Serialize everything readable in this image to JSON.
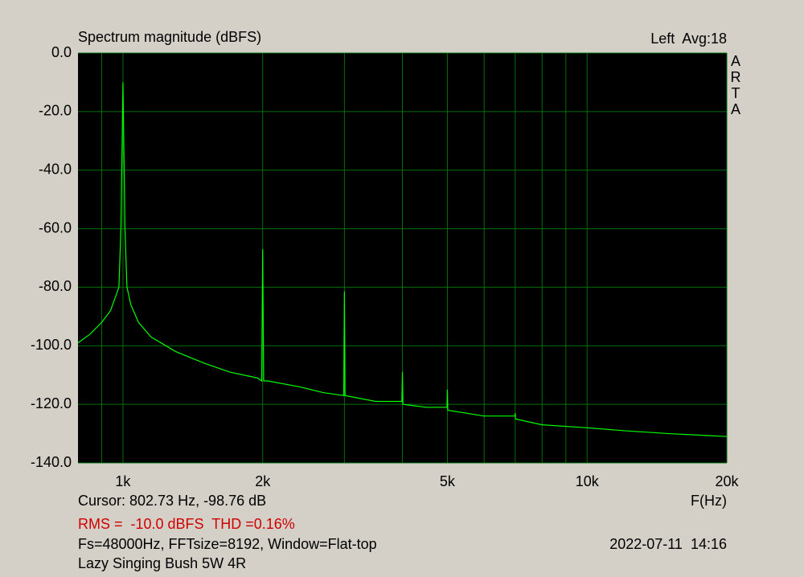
{
  "chart_data": {
    "type": "line",
    "title": "Spectrum magnitude (dBFS)",
    "channel_info": "Left  Avg:18",
    "brand": "ARTA",
    "x_label": "F(Hz)",
    "cursor": "Cursor: 802.73 Hz, -98.76 dB",
    "measurement": "RMS =  -10.0 dBFS  THD =0.16%",
    "settings": "Fs=48000Hz, FFTsize=8192, Window=Flat-top",
    "timestamp": "2022-07-11  14:16",
    "device": "Lazy Singing Bush 5W 4R",
    "x_log": true,
    "grid": true,
    "xlim": [
      800,
      20000
    ],
    "ylim": [
      -140,
      0
    ],
    "xticks": [
      {
        "value": 1000,
        "label": "1k"
      },
      {
        "value": 2000,
        "label": "2k"
      },
      {
        "value": 5000,
        "label": "5k"
      },
      {
        "value": 10000,
        "label": "10k"
      },
      {
        "value": 20000,
        "label": "20k"
      }
    ],
    "xgrid": [
      900,
      3000,
      4000,
      6000,
      7000,
      8000,
      9000
    ],
    "yticks": [
      {
        "value": 0,
        "label": "0.0"
      },
      {
        "value": -20,
        "label": "-20.0"
      },
      {
        "value": -40,
        "label": "-40.0"
      },
      {
        "value": -60,
        "label": "-60.0"
      },
      {
        "value": -80,
        "label": "-80.0"
      },
      {
        "value": -100,
        "label": "-100.0"
      },
      {
        "value": -120,
        "label": "-120.0"
      },
      {
        "value": -140,
        "label": "-140.0"
      }
    ],
    "x": [
      800,
      850,
      900,
      940,
      970,
      980,
      990,
      995,
      1000,
      1005,
      1010,
      1020,
      1040,
      1080,
      1150,
      1300,
      1500,
      1700,
      1950,
      1990,
      2000,
      2010,
      2050,
      2400,
      2700,
      2990,
      3000,
      3010,
      3500,
      3990,
      4000,
      4010,
      4500,
      4990,
      5000,
      5010,
      6000,
      6990,
      7000,
      7010,
      8000,
      10000,
      12000,
      15000,
      20000
    ],
    "series": [
      {
        "name": "Left",
        "color": "#00ff00",
        "values": [
          -99,
          -96,
          -92,
          -88,
          -82,
          -80,
          -60,
          -35,
          -10,
          -35,
          -60,
          -80,
          -86,
          -92,
          -97,
          -102,
          -106,
          -109,
          -111,
          -112,
          -67,
          -112,
          -112,
          -114,
          -116,
          -117,
          -81.5,
          -117,
          -119,
          -119,
          -109,
          -120,
          -121,
          -121,
          -115,
          -122,
          -124,
          -124,
          -123,
          -125,
          -127,
          -128,
          -129,
          -130,
          -131
        ]
      }
    ]
  }
}
